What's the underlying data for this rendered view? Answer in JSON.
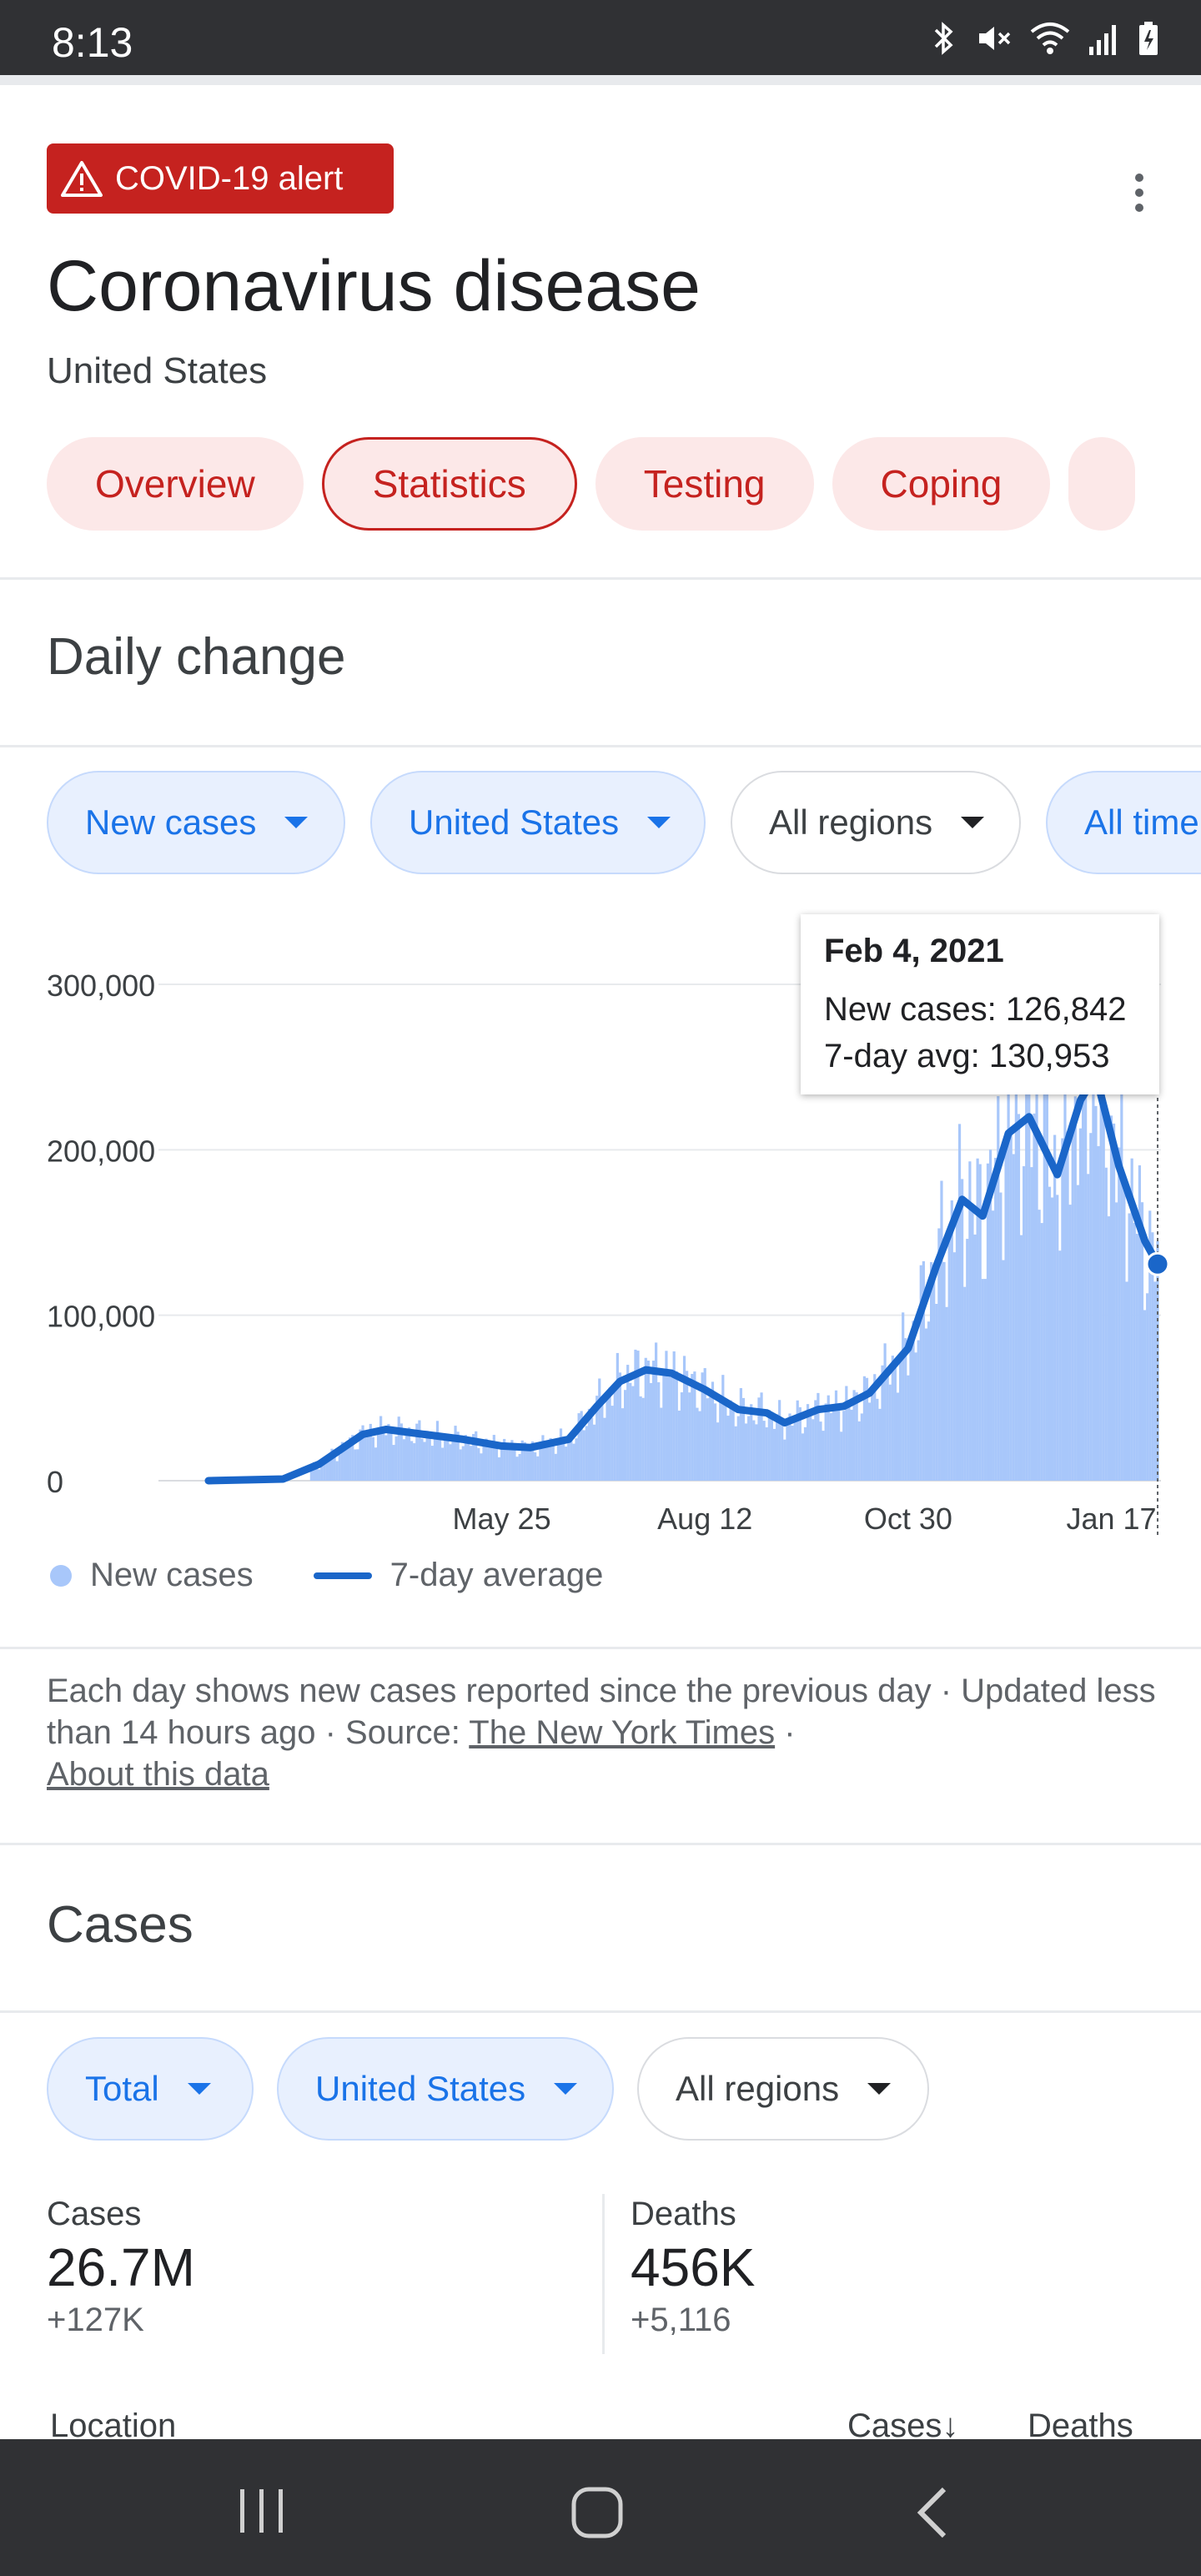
{
  "status_bar": {
    "time": "8:13",
    "icons": [
      "bluetooth-icon",
      "mute-icon",
      "wifi-icon",
      "signal-icon",
      "battery-icon"
    ]
  },
  "alert": {
    "label": "COVID-19 alert",
    "color": "#c5221f"
  },
  "header": {
    "title": "Coronavirus disease",
    "subtitle": "United States"
  },
  "tabs": [
    {
      "label": "Overview",
      "active": false
    },
    {
      "label": "Statistics",
      "active": true
    },
    {
      "label": "Testing",
      "active": false
    },
    {
      "label": "Coping",
      "active": false
    }
  ],
  "daily": {
    "title": "Daily change",
    "filters": {
      "metric": "New cases",
      "country": "United States",
      "regions": "All regions",
      "time": "All time"
    },
    "tooltip": {
      "date": "Feb 4, 2021",
      "cases": "New cases: 126,842",
      "avg": "7-day avg: 130,953"
    },
    "legend": {
      "bars": "New cases",
      "line": "7-day average"
    },
    "footnote": {
      "text": "Each day shows new cases reported since the previous day · Updated less than 14 hours ago",
      "source_prefix": "Source:",
      "source_link": "The New York Times",
      "about": "About this data"
    }
  },
  "chart_data": {
    "type": "bar",
    "title": "",
    "x_ticks": [
      "May 25",
      "Aug 12",
      "Oct 30",
      "Jan 17"
    ],
    "y_ticks": [
      "0",
      "100,000",
      "200,000",
      "300,000"
    ],
    "ylim": [
      0,
      300000
    ],
    "series": [
      {
        "name": "New cases",
        "type": "bar",
        "color": "#a8c7fa"
      },
      {
        "name": "7-day average",
        "type": "line",
        "color": "#1a66c9"
      }
    ],
    "avg_series": [
      {
        "date": "2020-02-01",
        "value": 0
      },
      {
        "date": "2020-03-01",
        "value": 1000
      },
      {
        "date": "2020-03-15",
        "value": 10000
      },
      {
        "date": "2020-04-01",
        "value": 28000
      },
      {
        "date": "2020-04-10",
        "value": 31000
      },
      {
        "date": "2020-04-25",
        "value": 28000
      },
      {
        "date": "2020-05-10",
        "value": 25000
      },
      {
        "date": "2020-05-25",
        "value": 21000
      },
      {
        "date": "2020-06-05",
        "value": 20000
      },
      {
        "date": "2020-06-20",
        "value": 25000
      },
      {
        "date": "2020-07-01",
        "value": 45000
      },
      {
        "date": "2020-07-10",
        "value": 60000
      },
      {
        "date": "2020-07-20",
        "value": 67000
      },
      {
        "date": "2020-07-30",
        "value": 65000
      },
      {
        "date": "2020-08-12",
        "value": 55000
      },
      {
        "date": "2020-08-25",
        "value": 43000
      },
      {
        "date": "2020-09-05",
        "value": 41000
      },
      {
        "date": "2020-09-12",
        "value": 35000
      },
      {
        "date": "2020-09-25",
        "value": 43000
      },
      {
        "date": "2020-10-05",
        "value": 45000
      },
      {
        "date": "2020-10-15",
        "value": 53000
      },
      {
        "date": "2020-10-30",
        "value": 80000
      },
      {
        "date": "2020-11-10",
        "value": 130000
      },
      {
        "date": "2020-11-20",
        "value": 170000
      },
      {
        "date": "2020-11-28",
        "value": 160000
      },
      {
        "date": "2020-12-08",
        "value": 210000
      },
      {
        "date": "2020-12-16",
        "value": 220000
      },
      {
        "date": "2020-12-27",
        "value": 185000
      },
      {
        "date": "2021-01-05",
        "value": 230000
      },
      {
        "date": "2021-01-11",
        "value": 245000
      },
      {
        "date": "2021-01-20",
        "value": 190000
      },
      {
        "date": "2021-01-30",
        "value": 145000
      },
      {
        "date": "2021-02-04",
        "value": 130953
      }
    ]
  },
  "cases": {
    "title": "Cases",
    "filters": {
      "metric": "Total",
      "country": "United States",
      "regions": "All regions"
    },
    "stats": [
      {
        "label": "Cases",
        "value": "26.7M",
        "delta": "+127K"
      },
      {
        "label": "Deaths",
        "value": "456K",
        "delta": "+5,116"
      }
    ],
    "table_headers": {
      "location": "Location",
      "cases": "Cases",
      "deaths": "Deaths"
    }
  },
  "nav": {
    "icons": [
      "recent-apps-icon",
      "home-icon",
      "back-icon"
    ]
  }
}
